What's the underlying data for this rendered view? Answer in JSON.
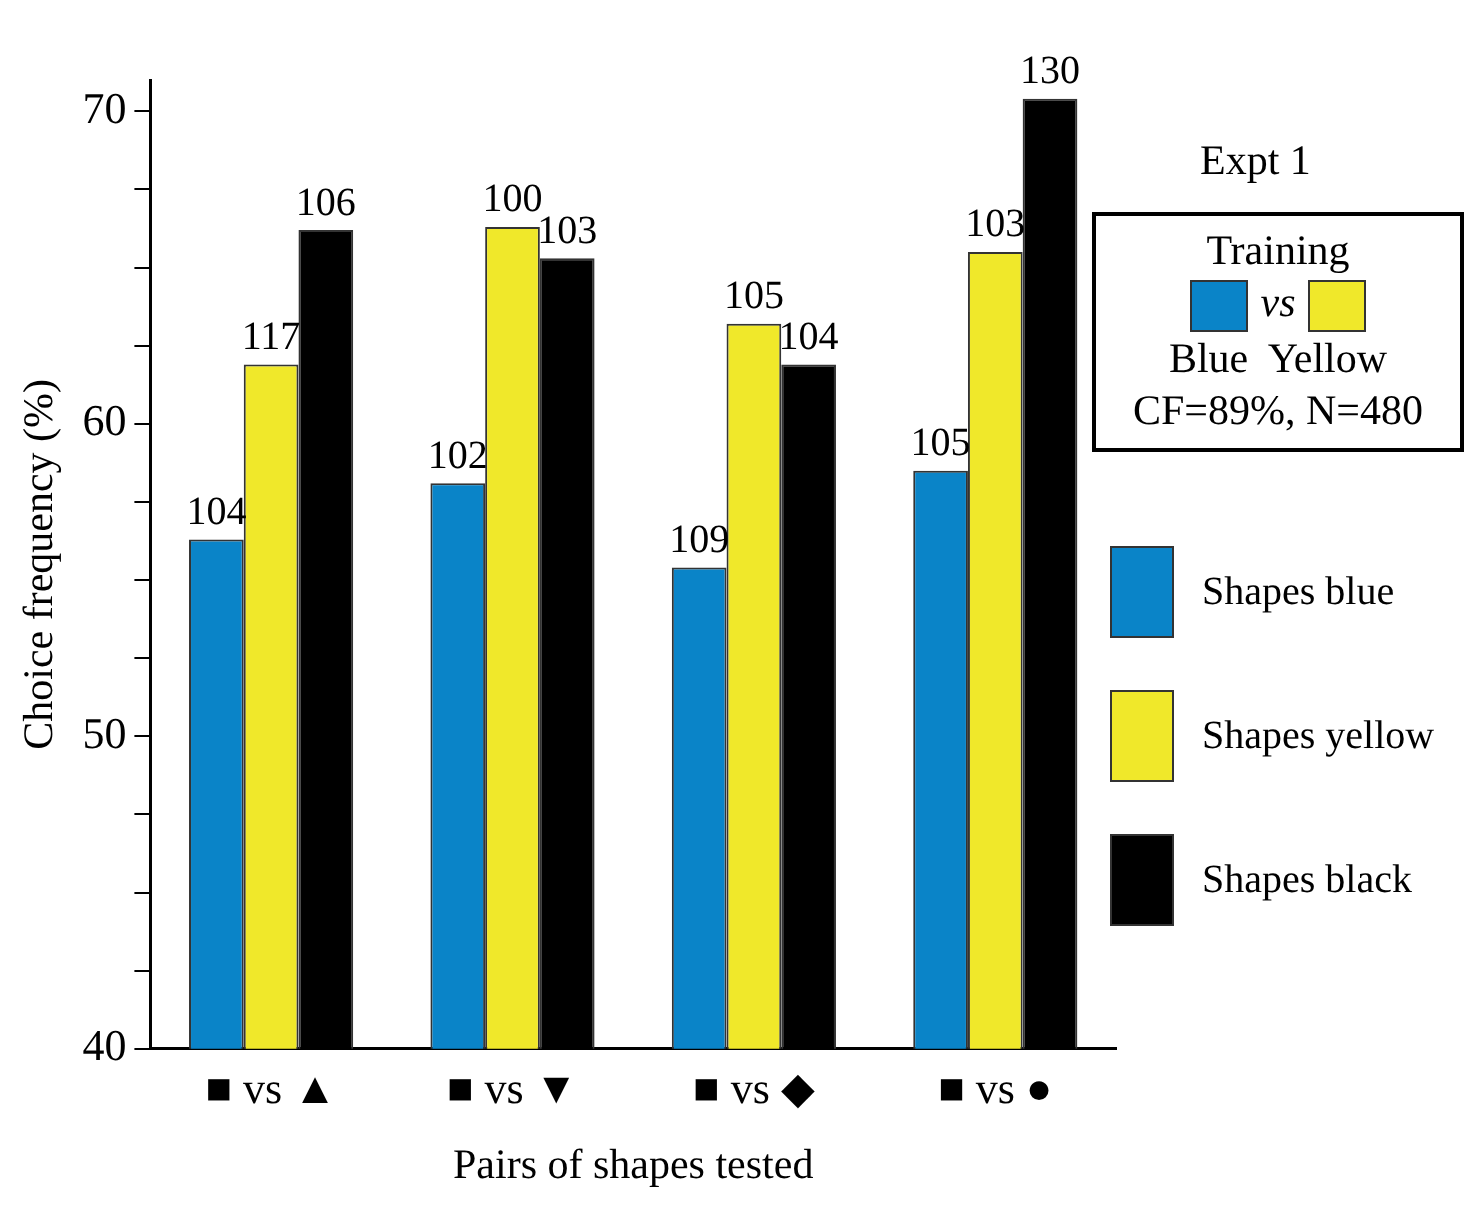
{
  "chart_data": {
    "type": "bar",
    "xlabel": "Pairs of shapes tested",
    "ylabel": "Choice frequency (%)",
    "categories": [
      "■ vs ▲",
      "■ vs ▼",
      "■ vs ◆",
      "■ vs ●"
    ],
    "series": [
      {
        "name": "Shapes blue",
        "color": "#0a84c8",
        "values": [
          56.3,
          58.1,
          55.4,
          58.5
        ]
      },
      {
        "name": "Shapes yellow",
        "color": "#f0e82a",
        "values": [
          61.9,
          66.3,
          63.2,
          65.5
        ]
      },
      {
        "name": "Shapes black",
        "color": "#000000",
        "values": [
          66.2,
          65.3,
          61.9,
          70.4
        ]
      }
    ],
    "ylim": [
      40,
      71
    ],
    "yticks": [
      40,
      {
        "value": 42.5,
        "label": null
      },
      {
        "value": 45,
        "label": null
      },
      {
        "value": 47.5,
        "label": null
      },
      50,
      {
        "value": 52.5,
        "label": null
      },
      {
        "value": 55,
        "label": null
      },
      {
        "value": 57.5,
        "label": null
      },
      60,
      {
        "value": 62.5,
        "label": null
      },
      {
        "value": 65,
        "label": null
      },
      {
        "value": 67.5,
        "label": null
      },
      70
    ],
    "grid": false,
    "legend": "right",
    "annotations": [
      "Expt 1",
      "Training",
      "vs",
      "Blue",
      "Yellow",
      "CF=89%, N=480",
      "104",
      "102",
      "109",
      "105",
      "117",
      "100",
      "105",
      "103",
      "106",
      "103",
      "104",
      "130"
    ]
  }
}
